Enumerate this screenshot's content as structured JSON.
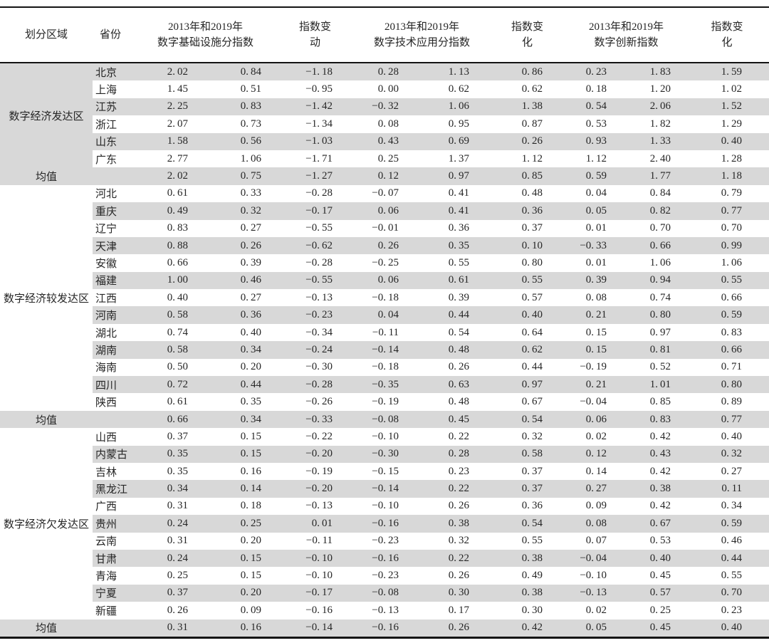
{
  "chart_data": {
    "type": "table",
    "headers": {
      "region": "划分区域",
      "province": "省份",
      "infra_line1": "2013年和2019年",
      "infra_line2": "数字基础设施分指数",
      "infra_change": "指数变动",
      "tech_line1": "2013年和2019年",
      "tech_line2": "数字技术应用分指数",
      "tech_change": "指数变化",
      "innov_line1": "2013年和2019年",
      "innov_line2": "数字创新指数",
      "innov_change": "指数变化"
    },
    "groups": [
      {
        "region": "数字经济发达区",
        "mean_label": "均值",
        "rows": [
          {
            "province": "北京",
            "values": [
              "2.02",
              "0.84",
              "-1.18",
              "0.28",
              "1.13",
              "0.86",
              "0.23",
              "1.83",
              "1.59"
            ]
          },
          {
            "province": "上海",
            "values": [
              "1.45",
              "0.51",
              "-0.95",
              "0.00",
              "0.62",
              "0.62",
              "0.18",
              "1.20",
              "1.02"
            ]
          },
          {
            "province": "江苏",
            "values": [
              "2.25",
              "0.83",
              "-1.42",
              "-0.32",
              "1.06",
              "1.38",
              "0.54",
              "2.06",
              "1.52"
            ]
          },
          {
            "province": "浙江",
            "values": [
              "2.07",
              "0.73",
              "-1.34",
              "0.08",
              "0.95",
              "0.87",
              "0.53",
              "1.82",
              "1.29"
            ]
          },
          {
            "province": "山东",
            "values": [
              "1.58",
              "0.56",
              "-1.03",
              "0.43",
              "0.69",
              "0.26",
              "0.93",
              "1.33",
              "0.40"
            ]
          },
          {
            "province": "广东",
            "values": [
              "2.77",
              "1.06",
              "-1.71",
              "0.25",
              "1.37",
              "1.12",
              "1.12",
              "2.40",
              "1.28"
            ]
          }
        ],
        "mean": [
          "2.02",
          "0.75",
          "-1.27",
          "0.12",
          "0.97",
          "0.85",
          "0.59",
          "1.77",
          "1.18"
        ]
      },
      {
        "region": "数字经济较发达区",
        "mean_label": "均值",
        "rows": [
          {
            "province": "河北",
            "values": [
              "0.61",
              "0.33",
              "-0.28",
              "-0.07",
              "0.41",
              "0.48",
              "0.04",
              "0.84",
              "0.79"
            ]
          },
          {
            "province": "重庆",
            "values": [
              "0.49",
              "0.32",
              "-0.17",
              "0.06",
              "0.41",
              "0.36",
              "0.05",
              "0.82",
              "0.77"
            ]
          },
          {
            "province": "辽宁",
            "values": [
              "0.83",
              "0.27",
              "-0.55",
              "-0.01",
              "0.36",
              "0.37",
              "0.01",
              "0.70",
              "0.70"
            ]
          },
          {
            "province": "天津",
            "values": [
              "0.88",
              "0.26",
              "-0.62",
              "0.26",
              "0.35",
              "0.10",
              "-0.33",
              "0.66",
              "0.99"
            ]
          },
          {
            "province": "安徽",
            "values": [
              "0.66",
              "0.39",
              "-0.28",
              "-0.25",
              "0.55",
              "0.80",
              "0.01",
              "1.06",
              "1.06"
            ]
          },
          {
            "province": "福建",
            "values": [
              "1.00",
              "0.46",
              "-0.55",
              "0.06",
              "0.61",
              "0.55",
              "0.39",
              "0.94",
              "0.55"
            ]
          },
          {
            "province": "江西",
            "values": [
              "0.40",
              "0.27",
              "-0.13",
              "-0.18",
              "0.39",
              "0.57",
              "0.08",
              "0.74",
              "0.66"
            ]
          },
          {
            "province": "河南",
            "values": [
              "0.58",
              "0.36",
              "-0.23",
              "0.04",
              "0.44",
              "0.40",
              "0.21",
              "0.80",
              "0.59"
            ]
          },
          {
            "province": "湖北",
            "values": [
              "0.74",
              "0.40",
              "-0.34",
              "-0.11",
              "0.54",
              "0.64",
              "0.15",
              "0.97",
              "0.83"
            ]
          },
          {
            "province": "湖南",
            "values": [
              "0.58",
              "0.34",
              "-0.24",
              "-0.14",
              "0.48",
              "0.62",
              "0.15",
              "0.81",
              "0.66"
            ]
          },
          {
            "province": "海南",
            "values": [
              "0.50",
              "0.20",
              "-0.30",
              "-0.18",
              "0.26",
              "0.44",
              "-0.19",
              "0.52",
              "0.71"
            ]
          },
          {
            "province": "四川",
            "values": [
              "0.72",
              "0.44",
              "-0.28",
              "-0.35",
              "0.63",
              "0.97",
              "0.21",
              "1.01",
              "0.80"
            ]
          },
          {
            "province": "陕西",
            "values": [
              "0.61",
              "0.35",
              "-0.26",
              "-0.19",
              "0.48",
              "0.67",
              "-0.04",
              "0.85",
              "0.89"
            ]
          }
        ],
        "mean": [
          "0.66",
          "0.34",
          "-0.33",
          "-0.08",
          "0.45",
          "0.54",
          "0.06",
          "0.83",
          "0.77"
        ]
      },
      {
        "region": "数字经济欠发达区",
        "mean_label": "均值",
        "rows": [
          {
            "province": "山西",
            "values": [
              "0.37",
              "0.15",
              "-0.22",
              "-0.10",
              "0.22",
              "0.32",
              "0.02",
              "0.42",
              "0.40"
            ]
          },
          {
            "province": "内蒙古",
            "values": [
              "0.35",
              "0.15",
              "-0.20",
              "-0.30",
              "0.28",
              "0.58",
              "0.12",
              "0.43",
              "0.32"
            ]
          },
          {
            "province": "吉林",
            "values": [
              "0.35",
              "0.16",
              "-0.19",
              "-0.15",
              "0.23",
              "0.37",
              "0.14",
              "0.42",
              "0.27"
            ]
          },
          {
            "province": "黑龙江",
            "values": [
              "0.34",
              "0.14",
              "-0.20",
              "-0.14",
              "0.22",
              "0.37",
              "0.27",
              "0.38",
              "0.11"
            ]
          },
          {
            "province": "广西",
            "values": [
              "0.31",
              "0.18",
              "-0.13",
              "-0.10",
              "0.26",
              "0.36",
              "0.09",
              "0.42",
              "0.34"
            ]
          },
          {
            "province": "贵州",
            "values": [
              "0.24",
              "0.25",
              "0.01",
              "-0.16",
              "0.38",
              "0.54",
              "0.08",
              "0.67",
              "0.59"
            ]
          },
          {
            "province": "云南",
            "values": [
              "0.31",
              "0.20",
              "-0.11",
              "-0.23",
              "0.32",
              "0.55",
              "0.07",
              "0.53",
              "0.46"
            ]
          },
          {
            "province": "甘肃",
            "values": [
              "0.24",
              "0.15",
              "-0.10",
              "-0.16",
              "0.22",
              "0.38",
              "-0.04",
              "0.40",
              "0.44"
            ]
          },
          {
            "province": "青海",
            "values": [
              "0.25",
              "0.15",
              "-0.10",
              "-0.23",
              "0.26",
              "0.49",
              "-0.10",
              "0.45",
              "0.55"
            ]
          },
          {
            "province": "宁夏",
            "values": [
              "0.37",
              "0.20",
              "-0.17",
              "-0.08",
              "0.30",
              "0.38",
              "-0.13",
              "0.57",
              "0.70"
            ]
          },
          {
            "province": "新疆",
            "values": [
              "0.26",
              "0.09",
              "-0.16",
              "-0.13",
              "0.17",
              "0.30",
              "0.02",
              "0.25",
              "0.23"
            ]
          }
        ],
        "mean": [
          "0.31",
          "0.16",
          "-0.14",
          "-0.16",
          "0.26",
          "0.42",
          "0.05",
          "0.45",
          "0.40"
        ]
      }
    ]
  }
}
